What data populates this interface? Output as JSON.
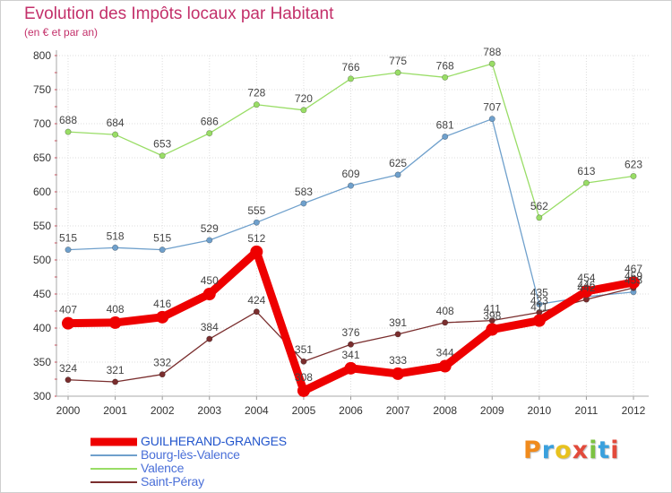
{
  "header": {
    "title": "Evolution des Impôts locaux par Habitant",
    "subtitle": "(en € et par an)"
  },
  "logo": {
    "text": "Proxiti"
  },
  "chart_data": {
    "type": "line",
    "title": "Evolution des Impôts locaux par Habitant",
    "subtitle": "(en € et par an)",
    "xlabel": "",
    "ylabel": "",
    "x": [
      "2000",
      "2001",
      "2002",
      "2003",
      "2004",
      "2005",
      "2006",
      "2007",
      "2008",
      "2009",
      "2010",
      "2011",
      "2012"
    ],
    "ylim": [
      300,
      800
    ],
    "yticks": [
      "300",
      "350",
      "400",
      "450",
      "500",
      "550",
      "600",
      "650",
      "700",
      "750",
      "800"
    ],
    "grid": true,
    "legend": "bottom-left",
    "series": [
      {
        "name": "GUILHERAND-GRANGES",
        "color": "#ee0000",
        "values": [
          407,
          408,
          416,
          450,
          512,
          308,
          341,
          333,
          344,
          398,
          411,
          454,
          467
        ]
      },
      {
        "name": "Bourg-lès-Valence",
        "color": "#6fa0cc",
        "values": [
          515,
          518,
          515,
          529,
          555,
          583,
          609,
          625,
          681,
          707,
          435,
          446,
          453
        ]
      },
      {
        "name": "Valence",
        "color": "#99dd66",
        "values": [
          688,
          684,
          653,
          686,
          728,
          720,
          766,
          775,
          768,
          788,
          562,
          613,
          623
        ]
      },
      {
        "name": "Saint-Péray",
        "color": "#7a2e2e",
        "values": [
          324,
          321,
          332,
          384,
          424,
          351,
          376,
          391,
          408,
          411,
          423,
          442,
          459
        ]
      }
    ]
  }
}
